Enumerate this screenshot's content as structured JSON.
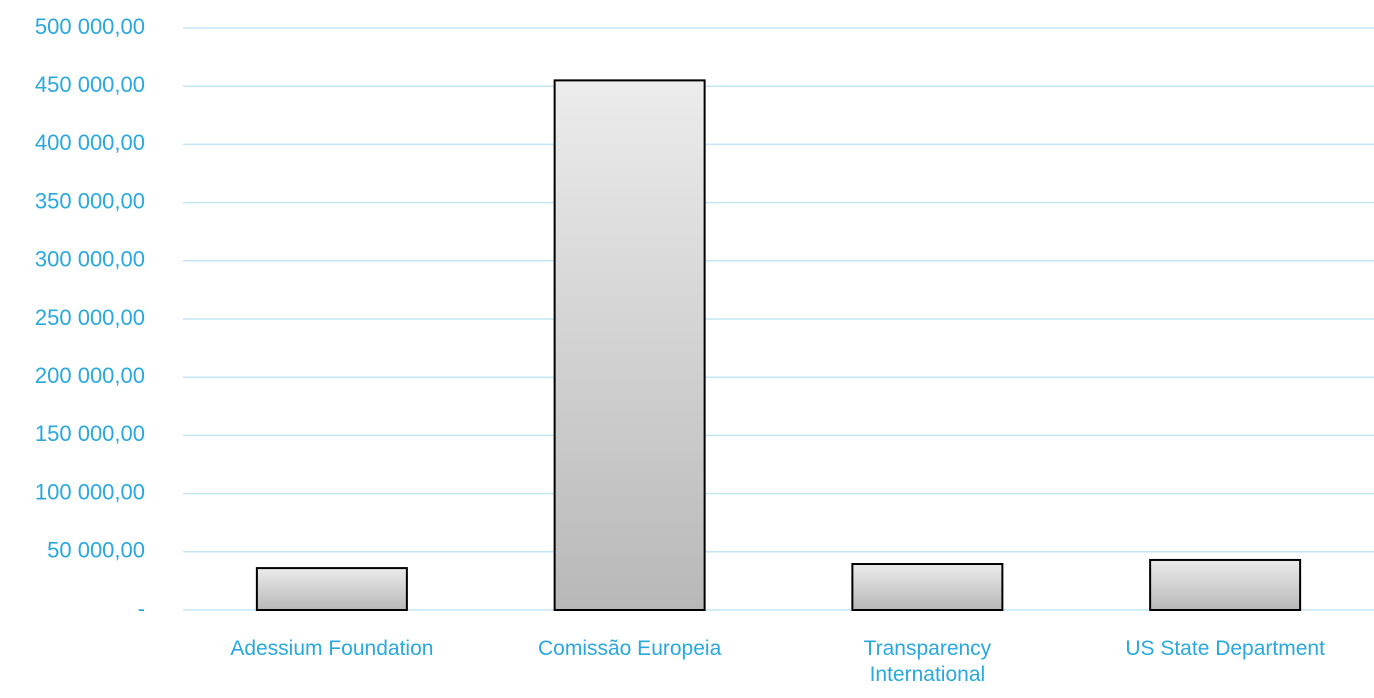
{
  "chart_data": {
    "type": "bar",
    "categories": [
      "Adessium Foundation",
      "Comissão Europeia",
      "Transparency International",
      "US State Department"
    ],
    "values": [
      36000,
      455000,
      39500,
      43000
    ],
    "color": "#b8b8b8",
    "ylim": [
      0,
      500000
    ],
    "yticks": [
      {
        "value": 0,
        "label": "-"
      },
      {
        "value": 50000,
        "label": "50 000,00"
      },
      {
        "value": 100000,
        "label": "100 000,00"
      },
      {
        "value": 150000,
        "label": "150 000,00"
      },
      {
        "value": 200000,
        "label": "200 000,00"
      },
      {
        "value": 250000,
        "label": "250 000,00"
      },
      {
        "value": 300000,
        "label": "300 000,00"
      },
      {
        "value": 350000,
        "label": "350 000,00"
      },
      {
        "value": 400000,
        "label": "400 000,00"
      },
      {
        "value": 450000,
        "label": "450 000,00"
      },
      {
        "value": 500000,
        "label": "500 000,00"
      }
    ],
    "grid": true
  }
}
